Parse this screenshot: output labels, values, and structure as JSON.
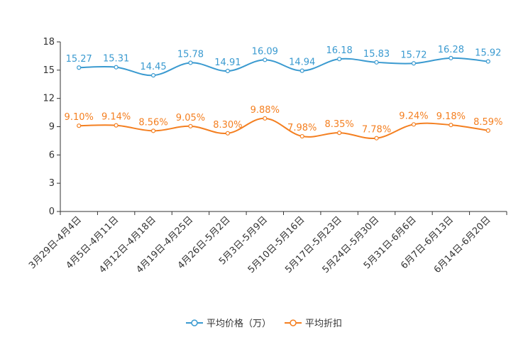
{
  "chart_data": {
    "type": "line",
    "title": "",
    "xlabel": "",
    "ylabel": "",
    "ylim": [
      0,
      18
    ],
    "yticks": [
      0,
      3,
      6,
      9,
      12,
      15,
      18
    ],
    "categories": [
      "3月29日-4月4日",
      "4月5日-4月11日",
      "4月12日-4月18日",
      "4月19日-4月25日",
      "4月26日-5月2日",
      "5月3日-5月9日",
      "5月10日-5月16日",
      "5月17日-5月23日",
      "5月24日-5月30日",
      "5月31日-6月6日",
      "6月7日-6月13日",
      "6月14日-6月20日"
    ],
    "series": [
      {
        "name": "平均价格（万）",
        "color": "#3a9ad0",
        "values": [
          15.27,
          15.31,
          14.45,
          15.78,
          14.91,
          16.09,
          14.94,
          16.18,
          15.83,
          15.72,
          16.28,
          15.92
        ],
        "labels": [
          "15.27",
          "15.31",
          "14.45",
          "15.78",
          "14.91",
          "16.09",
          "14.94",
          "16.18",
          "15.83",
          "15.72",
          "16.28",
          "15.92"
        ]
      },
      {
        "name": "平均折扣",
        "color": "#f47f20",
        "values": [
          9.1,
          9.14,
          8.56,
          9.05,
          8.3,
          9.88,
          7.98,
          8.35,
          7.78,
          9.24,
          9.18,
          8.59
        ],
        "labels": [
          "9.10%",
          "9.14%",
          "8.56%",
          "9.05%",
          "8.30%",
          "9.88%",
          "7.98%",
          "8.35%",
          "7.78%",
          "9.24%",
          "9.18%",
          "8.59%"
        ]
      }
    ],
    "grid": false,
    "legend_position": "bottom-center",
    "axis_color": "#333333"
  }
}
